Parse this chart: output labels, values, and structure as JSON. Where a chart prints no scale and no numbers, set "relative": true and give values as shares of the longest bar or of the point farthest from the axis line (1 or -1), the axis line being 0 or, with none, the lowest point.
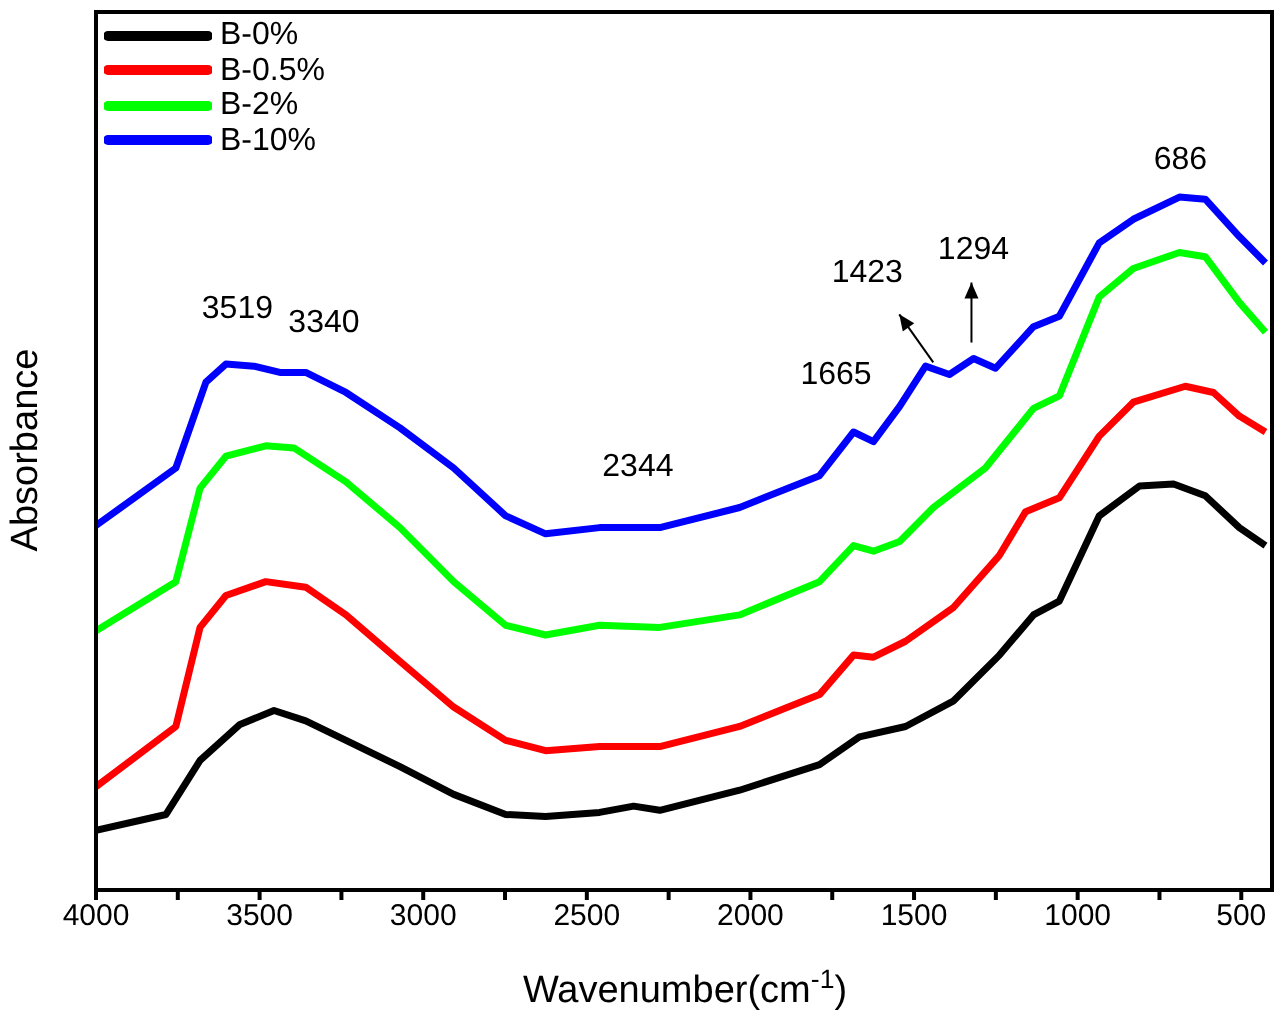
{
  "chart_data": {
    "type": "line",
    "relative": true,
    "xlabel": "Wavenumber(cm$^{-1}$)",
    "ylabel": "Absorbance",
    "xlim": [
      4000,
      400
    ],
    "xticks": [
      4000,
      {
        "value": 3750,
        "label": null
      },
      3500,
      {
        "value": 3250,
        "label": null
      },
      3000,
      {
        "value": 2750,
        "label": null
      },
      2500,
      {
        "value": 2250,
        "label": null
      },
      2000,
      {
        "value": 1750,
        "label": null
      },
      1500,
      {
        "value": 1250,
        "label": null
      },
      1000,
      {
        "value": 750,
        "label": null
      },
      500
    ],
    "legend": "top left",
    "marker": "none",
    "line_style": "solid",
    "series": [
      {
        "name": "B-0%",
        "color": "#000000",
        "x": [
          4000,
          3786,
          3682,
          3560,
          3456,
          3359,
          3236,
          3071,
          2907,
          2748,
          2626,
          2461,
          2357,
          2277,
          2033,
          1789,
          1667,
          1526,
          1379,
          1239,
          1135,
          1056,
          934,
          811,
          707,
          610,
          506,
          426
        ],
        "values": [
          0.086,
          0.109,
          0.187,
          0.239,
          0.259,
          0.244,
          0.216,
          0.178,
          0.138,
          0.109,
          0.106,
          0.112,
          0.121,
          0.115,
          0.144,
          0.181,
          0.221,
          0.236,
          0.273,
          0.339,
          0.397,
          0.417,
          0.54,
          0.583,
          0.586,
          0.569,
          0.523,
          0.497
        ]
      },
      {
        "name": "B-0.5%",
        "color": "#ff0000",
        "x": [
          4000,
          3756,
          3682,
          3603,
          3481,
          3359,
          3236,
          3071,
          2907,
          2748,
          2626,
          2461,
          2277,
          2033,
          1789,
          1685,
          1624,
          1526,
          1379,
          1239,
          1159,
          1056,
          934,
          830,
          671,
          585,
          506,
          426
        ],
        "values": [
          0.149,
          0.236,
          0.379,
          0.425,
          0.445,
          0.437,
          0.397,
          0.33,
          0.264,
          0.216,
          0.201,
          0.207,
          0.207,
          0.236,
          0.282,
          0.339,
          0.336,
          0.359,
          0.408,
          0.483,
          0.546,
          0.566,
          0.655,
          0.704,
          0.727,
          0.718,
          0.684,
          0.661
        ]
      },
      {
        "name": "B-2%",
        "color": "#00ff00",
        "x": [
          4000,
          3756,
          3682,
          3603,
          3481,
          3395,
          3236,
          3071,
          2907,
          2748,
          2626,
          2461,
          2277,
          2033,
          1789,
          1685,
          1624,
          1544,
          1441,
          1282,
          1135,
          1056,
          934,
          830,
          689,
          610,
          506,
          426
        ],
        "values": [
          0.374,
          0.445,
          0.58,
          0.626,
          0.641,
          0.638,
          0.589,
          0.523,
          0.445,
          0.382,
          0.368,
          0.382,
          0.379,
          0.397,
          0.445,
          0.497,
          0.489,
          0.503,
          0.552,
          0.609,
          0.695,
          0.713,
          0.856,
          0.897,
          0.92,
          0.914,
          0.848,
          0.805
        ]
      },
      {
        "name": "B-10%",
        "color": "#0000ff",
        "x": [
          4000,
          3756,
          3664,
          3603,
          3517,
          3438,
          3359,
          3236,
          3071,
          2907,
          2748,
          2626,
          2461,
          2277,
          2033,
          1789,
          1685,
          1624,
          1544,
          1465,
          1392,
          1318,
          1251,
          1135,
          1056,
          934,
          830,
          689,
          610,
          506,
          426
        ],
        "values": [
          0.526,
          0.609,
          0.733,
          0.759,
          0.756,
          0.747,
          0.747,
          0.718,
          0.667,
          0.609,
          0.54,
          0.514,
          0.523,
          0.523,
          0.552,
          0.598,
          0.661,
          0.647,
          0.698,
          0.756,
          0.744,
          0.767,
          0.753,
          0.813,
          0.828,
          0.934,
          0.968,
          1.0,
          0.997,
          0.943,
          0.905
        ]
      }
    ],
    "annotations": [
      {
        "text": "3519",
        "x": 3519,
        "y": 0.756
      },
      {
        "text": "3340",
        "x": 3340,
        "y": 0.747
      },
      {
        "text": "2344",
        "x": 2344,
        "y": 0.523
      },
      {
        "text": "1665",
        "x": 1665,
        "y": 0.661
      },
      {
        "text": "1423",
        "x": 1423,
        "y": 0.75
      },
      {
        "text": "1294",
        "x": 1294,
        "y": 0.767
      },
      {
        "text": "686",
        "x": 686,
        "y": 1.0
      }
    ]
  }
}
